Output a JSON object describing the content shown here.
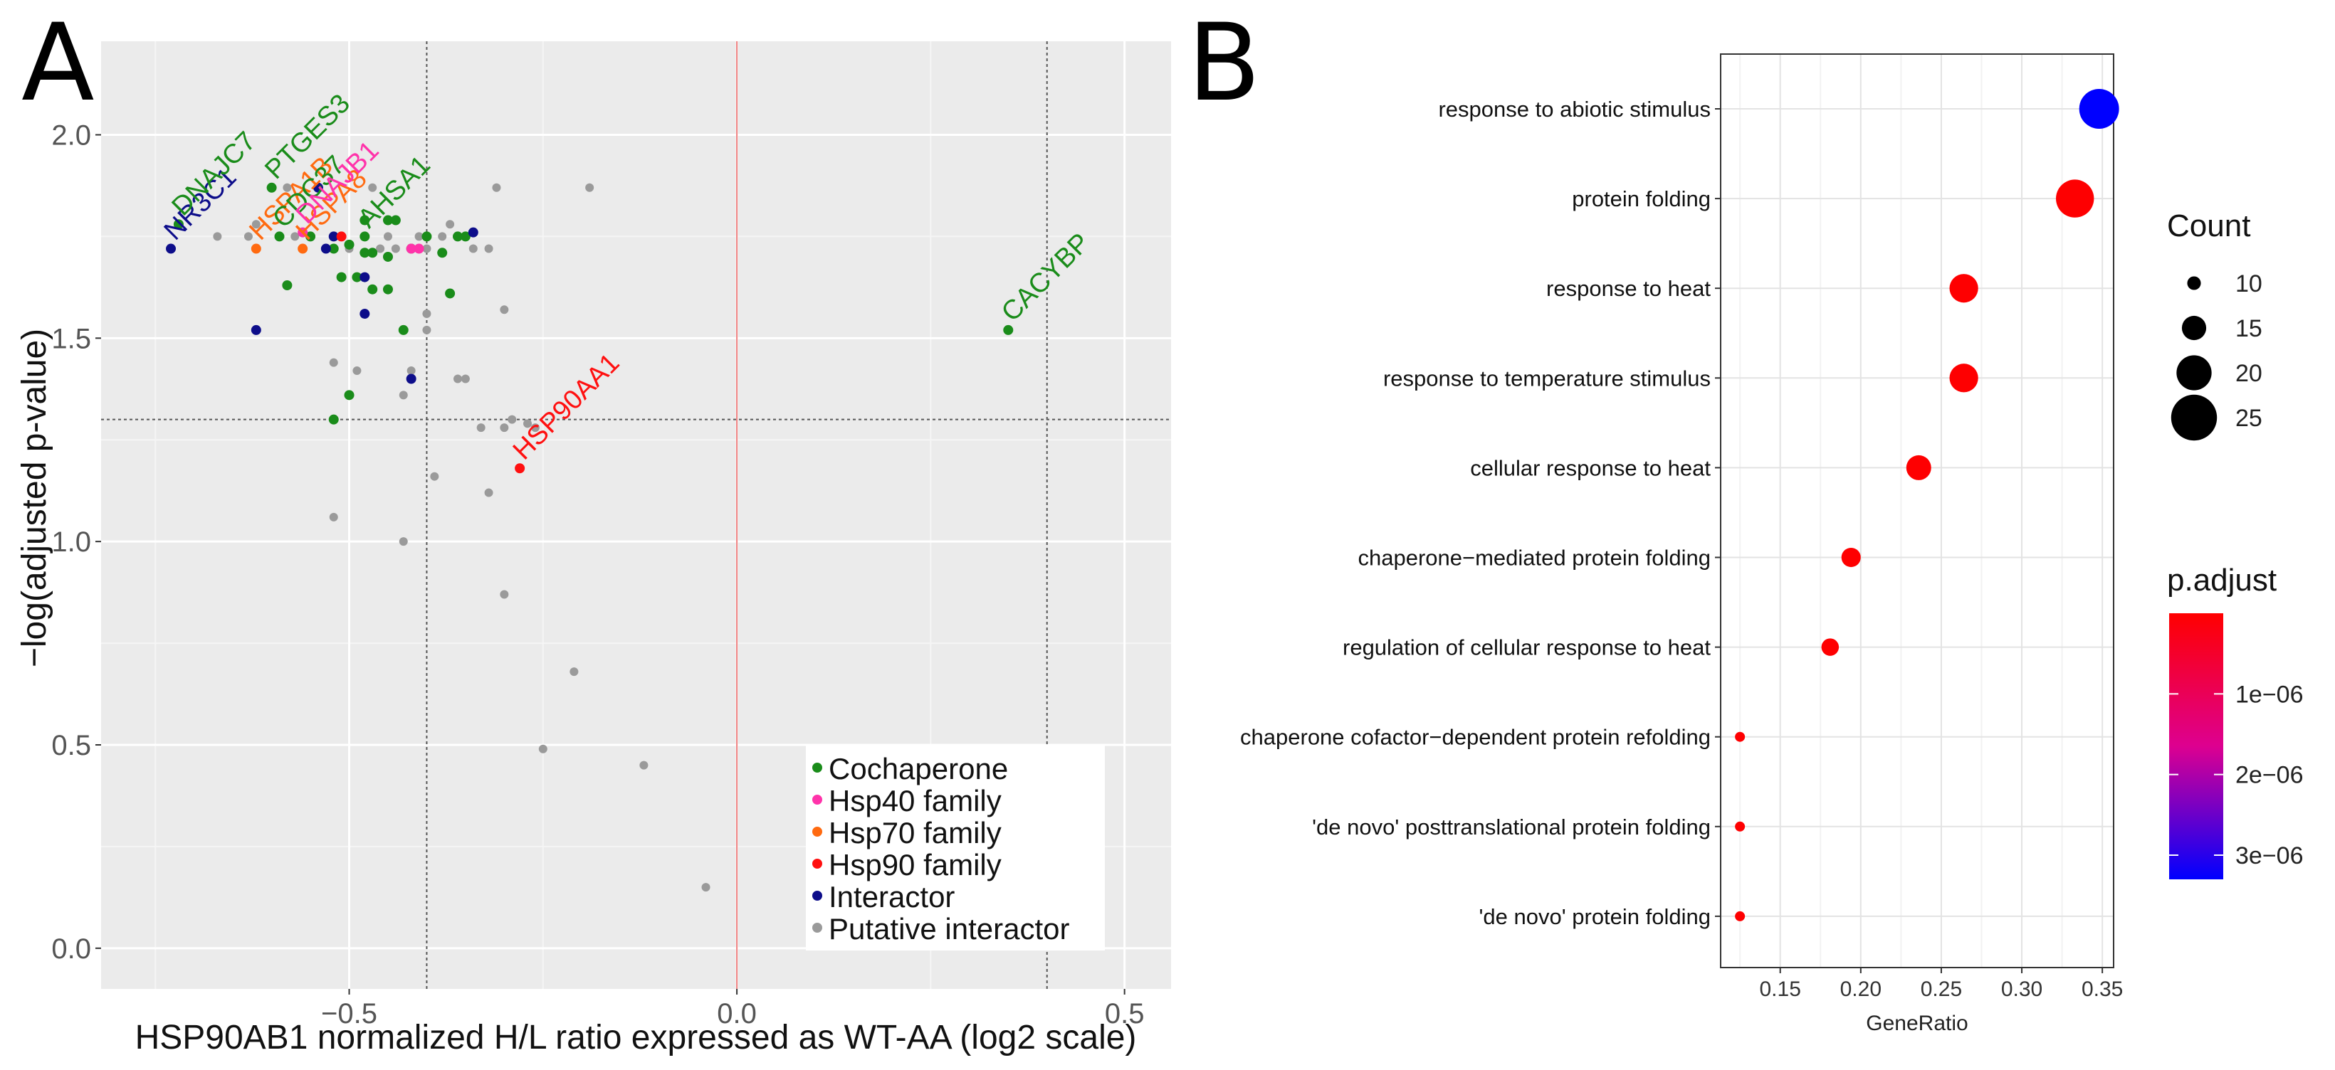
{
  "chart_data": [
    {
      "panel_label": "A",
      "type": "scatter",
      "title": "",
      "xlabel": "HSP90AB1 normalized H/L ratio expressed as WT-AA (log2 scale)",
      "ylabel": "−log(adjusted p-value)",
      "xlim": [
        -0.82,
        0.56
      ],
      "ylim": [
        -0.1,
        2.23
      ],
      "xticks": [
        -0.5,
        0.0,
        0.5
      ],
      "xtick_labels": [
        "−0.5",
        "0.0",
        "0.5"
      ],
      "yticks": [
        0.0,
        0.5,
        1.0,
        1.5,
        2.0
      ],
      "ytick_labels": [
        "0.0",
        "0.5",
        "1.0",
        "1.5",
        "2.0"
      ],
      "grid": true,
      "reference_lines": {
        "vertical_dashed": [
          -0.4,
          0.4
        ],
        "vertical_solid_red": [
          0.0
        ],
        "horizontal_dashed": [
          1.3
        ]
      },
      "legend": {
        "placement": "bottom-right",
        "entries": [
          {
            "label": "Cochaperone",
            "color": "#1a8c1a"
          },
          {
            "label": "Hsp40 family",
            "color": "#ff33aa"
          },
          {
            "label": "Hsp70 family",
            "color": "#ff6a10"
          },
          {
            "label": "Hsp90 family",
            "color": "#ff1010"
          },
          {
            "label": "Interactor",
            "color": "#0d0d8a"
          },
          {
            "label": "Putative interactor",
            "color": "#9a9a9a"
          }
        ]
      },
      "series": [
        {
          "name": "Cochaperone",
          "color": "#1a8c1a",
          "points": [
            [
              -0.72,
              1.78
            ],
            [
              -0.6,
              1.87
            ],
            [
              -0.59,
              1.75
            ],
            [
              -0.58,
              1.63
            ],
            [
              -0.55,
              1.75
            ],
            [
              -0.52,
              1.72
            ],
            [
              -0.5,
              1.73
            ],
            [
              -0.49,
              1.65
            ],
            [
              -0.48,
              1.71
            ],
            [
              -0.48,
              1.79
            ],
            [
              -0.48,
              1.75
            ],
            [
              -0.47,
              1.62
            ],
            [
              -0.47,
              1.71
            ],
            [
              -0.45,
              1.7
            ],
            [
              -0.45,
              1.79
            ],
            [
              -0.45,
              1.62
            ],
            [
              -0.44,
              1.79
            ],
            [
              -0.43,
              1.52
            ],
            [
              -0.42,
              1.72
            ],
            [
              -0.4,
              1.75
            ],
            [
              -0.38,
              1.71
            ],
            [
              -0.37,
              1.61
            ],
            [
              -0.36,
              1.75
            ],
            [
              -0.35,
              1.75
            ],
            [
              -0.52,
              1.3
            ],
            [
              -0.5,
              1.36
            ],
            [
              0.35,
              1.52
            ],
            [
              -0.51,
              1.65
            ]
          ]
        },
        {
          "name": "Hsp40 family",
          "color": "#ff33aa",
          "points": [
            [
              -0.56,
              1.76
            ],
            [
              -0.42,
              1.72
            ],
            [
              -0.41,
              1.72
            ]
          ]
        },
        {
          "name": "Hsp70 family",
          "color": "#ff6a10",
          "points": [
            [
              -0.62,
              1.72
            ],
            [
              -0.56,
              1.72
            ]
          ]
        },
        {
          "name": "Hsp90 family",
          "color": "#ff1010",
          "points": [
            [
              -0.51,
              1.75
            ],
            [
              -0.28,
              1.18
            ]
          ]
        },
        {
          "name": "Interactor",
          "color": "#0d0d8a",
          "points": [
            [
              -0.73,
              1.72
            ],
            [
              -0.62,
              1.52
            ],
            [
              -0.54,
              1.87
            ],
            [
              -0.52,
              1.75
            ],
            [
              -0.53,
              1.72
            ],
            [
              -0.48,
              1.65
            ],
            [
              -0.48,
              1.56
            ],
            [
              -0.42,
              1.4
            ],
            [
              -0.34,
              1.76
            ]
          ]
        },
        {
          "name": "Putative interactor",
          "color": "#9a9a9a",
          "points": [
            [
              -0.67,
              1.75
            ],
            [
              -0.63,
              1.75
            ],
            [
              -0.58,
              1.87
            ],
            [
              -0.57,
              1.75
            ],
            [
              -0.55,
              1.75
            ],
            [
              -0.53,
              1.72
            ],
            [
              -0.52,
              1.44
            ],
            [
              -0.51,
              1.75
            ],
            [
              -0.5,
              1.72
            ],
            [
              -0.49,
              1.42
            ],
            [
              -0.47,
              1.87
            ],
            [
              -0.46,
              1.72
            ],
            [
              -0.45,
              1.75
            ],
            [
              -0.44,
              1.72
            ],
            [
              -0.43,
              1.36
            ],
            [
              -0.42,
              1.42
            ],
            [
              -0.41,
              1.75
            ],
            [
              -0.4,
              1.72
            ],
            [
              -0.4,
              1.52
            ],
            [
              -0.4,
              1.56
            ],
            [
              -0.39,
              1.16
            ],
            [
              -0.38,
              1.75
            ],
            [
              -0.37,
              1.78
            ],
            [
              -0.36,
              1.4
            ],
            [
              -0.35,
              1.4
            ],
            [
              -0.34,
              1.72
            ],
            [
              -0.33,
              1.28
            ],
            [
              -0.32,
              1.12
            ],
            [
              -0.31,
              1.87
            ],
            [
              -0.3,
              1.57
            ],
            [
              -0.3,
              1.28
            ],
            [
              -0.29,
              1.3
            ],
            [
              -0.27,
              1.29
            ],
            [
              -0.26,
              1.28
            ],
            [
              -0.52,
              1.06
            ],
            [
              -0.43,
              1.0
            ],
            [
              -0.3,
              0.87
            ],
            [
              -0.21,
              0.68
            ],
            [
              -0.25,
              0.49
            ],
            [
              -0.12,
              0.45
            ],
            [
              -0.04,
              0.15
            ],
            [
              -0.19,
              1.87
            ],
            [
              -0.32,
              1.72
            ],
            [
              -0.62,
              1.78
            ]
          ]
        }
      ],
      "annotations": [
        {
          "text": "NR3C1",
          "x": -0.73,
          "y": 1.72,
          "color": "#0d0d8a"
        },
        {
          "text": "DNAJC7",
          "x": -0.72,
          "y": 1.78,
          "color": "#1a8c1a"
        },
        {
          "text": "PTGES3",
          "x": -0.6,
          "y": 1.87,
          "color": "#1a8c1a"
        },
        {
          "text": "HSPA1B",
          "x": -0.62,
          "y": 1.72,
          "color": "#ff6a10"
        },
        {
          "text": "CDC37",
          "x": -0.59,
          "y": 1.75,
          "color": "#1a8c1a"
        },
        {
          "text": "HSPA8",
          "x": -0.56,
          "y": 1.72,
          "color": "#ff6a10"
        },
        {
          "text": "DNAJB1",
          "x": -0.56,
          "y": 1.76,
          "color": "#ff33aa"
        },
        {
          "text": "AHSA1",
          "x": -0.48,
          "y": 1.75,
          "color": "#1a8c1a"
        },
        {
          "text": "HSP90AA1",
          "x": -0.28,
          "y": 1.18,
          "color": "#ff1010"
        },
        {
          "text": "CACYBP",
          "x": 0.35,
          "y": 1.52,
          "color": "#1a8c1a"
        }
      ]
    },
    {
      "panel_label": "B",
      "type": "scatter",
      "title": "",
      "xlabel": "GeneRatio",
      "ylabel": "",
      "xlim": [
        0.113,
        0.357
      ],
      "xticks": [
        0.15,
        0.2,
        0.25,
        0.3,
        0.35
      ],
      "xtick_labels": [
        "0.15",
        "0.20",
        "0.25",
        "0.30",
        "0.35"
      ],
      "grid": true,
      "categories": [
        "response to abiotic stimulus",
        "protein folding",
        "response to heat",
        "response to temperature stimulus",
        "cellular response to heat",
        "chaperone−mediated protein folding",
        "regulation of cellular response to heat",
        "chaperone cofactor−dependent protein refolding",
        "'de novo' posttranslational protein folding",
        "'de novo' protein folding"
      ],
      "gene_ratio": [
        0.348,
        0.333,
        0.264,
        0.264,
        0.236,
        0.194,
        0.181,
        0.125,
        0.125,
        0.125
      ],
      "count": [
        25,
        24,
        19,
        19,
        17,
        14,
        13,
        9,
        9,
        9
      ],
      "p_adjust": [
        3.3e-06,
        1e-08,
        1e-08,
        1e-08,
        1e-08,
        1e-08,
        1e-08,
        1e-08,
        1e-08,
        1e-08
      ],
      "size_legend": {
        "title": "Count",
        "values": [
          10,
          15,
          20,
          25
        ],
        "labels": [
          "10",
          "15",
          "20",
          "25"
        ]
      },
      "color_legend": {
        "title": "p.adjust",
        "ticks": [
          1e-06,
          2e-06,
          3e-06
        ],
        "tick_labels": [
          "1e−06",
          "2e−06",
          "3e−06"
        ],
        "range": [
          0,
          3.3e-06
        ],
        "low_color": "#ff0000",
        "high_color": "#0000ff"
      }
    }
  ]
}
